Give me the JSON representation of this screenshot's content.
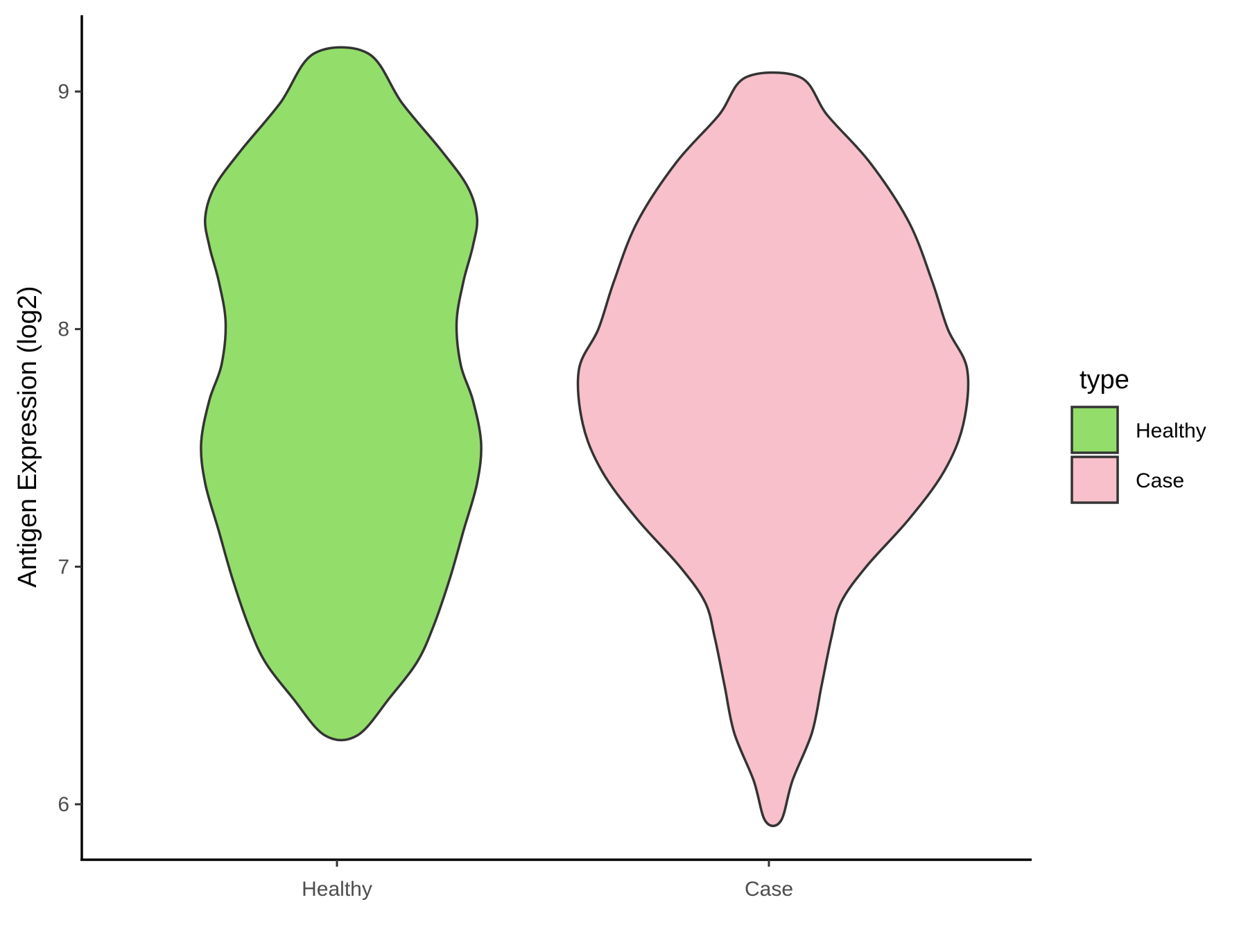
{
  "chart_data": {
    "type": "violin",
    "title": "",
    "xlabel": "",
    "ylabel": "Antigen Expression (log2)",
    "ylim": [
      5.75,
      9.3
    ],
    "yticks": [
      6,
      7,
      8,
      9
    ],
    "categories": [
      "Healthy",
      "Case"
    ],
    "grid": false,
    "legend": {
      "title": "type",
      "placement": "right",
      "entries": [
        {
          "label": "Healthy",
          "color": "#93dd6b"
        },
        {
          "label": "Case",
          "color": "#f7c0cb"
        }
      ]
    },
    "series": [
      {
        "name": "Healthy",
        "color": "#93dd6b",
        "min": 6.29,
        "max": 9.16,
        "profile": [
          [
            6.29,
            0.12
          ],
          [
            6.45,
            0.36
          ],
          [
            6.6,
            0.56
          ],
          [
            6.75,
            0.68
          ],
          [
            6.95,
            0.8
          ],
          [
            7.15,
            0.9
          ],
          [
            7.35,
            1.0
          ],
          [
            7.52,
            1.03
          ],
          [
            7.7,
            0.97
          ],
          [
            7.85,
            0.88
          ],
          [
            8.03,
            0.85
          ],
          [
            8.2,
            0.9
          ],
          [
            8.35,
            0.97
          ],
          [
            8.47,
            1.0
          ],
          [
            8.6,
            0.93
          ],
          [
            8.75,
            0.74
          ],
          [
            8.95,
            0.45
          ],
          [
            9.16,
            0.2
          ]
        ]
      },
      {
        "name": "Case",
        "color": "#f7c0cb",
        "min": 5.93,
        "max": 9.06,
        "profile": [
          [
            5.93,
            0.04
          ],
          [
            6.1,
            0.1
          ],
          [
            6.3,
            0.2
          ],
          [
            6.5,
            0.25
          ],
          [
            6.7,
            0.3
          ],
          [
            6.85,
            0.35
          ],
          [
            7.0,
            0.48
          ],
          [
            7.2,
            0.7
          ],
          [
            7.4,
            0.88
          ],
          [
            7.6,
            0.98
          ],
          [
            7.83,
            1.0
          ],
          [
            8.0,
            0.9
          ],
          [
            8.2,
            0.82
          ],
          [
            8.45,
            0.7
          ],
          [
            8.7,
            0.5
          ],
          [
            8.9,
            0.28
          ],
          [
            9.06,
            0.14
          ]
        ]
      }
    ]
  }
}
